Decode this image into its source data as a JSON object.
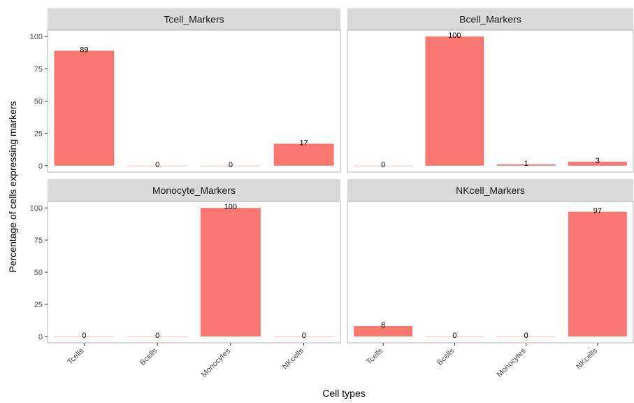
{
  "chart_data": {
    "type": "bar",
    "facet": "wrap",
    "xlabel": "Cell types",
    "ylabel": "Percentage of cells expressing markers",
    "categories": [
      "Tcells",
      "Bcells",
      "Monocytes",
      "NKcells"
    ],
    "y_ticks": [
      0,
      25,
      50,
      75,
      100
    ],
    "ylim": [
      -5,
      105
    ],
    "grid": false,
    "bar_color": "#F8766D",
    "strip_color": "#D9D9D9",
    "panel_border_color": "#B3B3B3",
    "panels": [
      {
        "title": "Tcell_Markers",
        "values": [
          89,
          0,
          0,
          17
        ],
        "labels": [
          "89",
          "0",
          "0",
          "17"
        ]
      },
      {
        "title": "Bcell_Markers",
        "values": [
          0,
          100,
          1,
          3
        ],
        "labels": [
          "0",
          "100",
          "1",
          "3"
        ]
      },
      {
        "title": "Monocyte_Markers",
        "values": [
          0,
          0,
          100,
          0
        ],
        "labels": [
          "0",
          "0",
          "100",
          "0"
        ]
      },
      {
        "title": "NKcell_Markers",
        "values": [
          8,
          0,
          0,
          97
        ],
        "labels": [
          "8",
          "0",
          "0",
          "97"
        ]
      }
    ]
  }
}
